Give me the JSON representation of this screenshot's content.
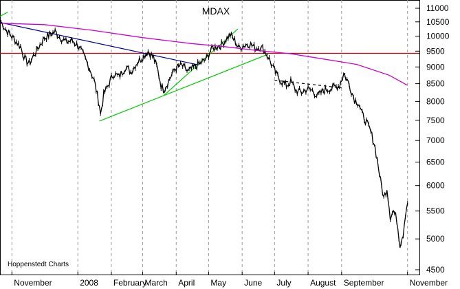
{
  "chart_data": {
    "type": "line",
    "title": "MDAX",
    "credit": "Hoppenstedt Charts",
    "xlabel": "",
    "ylabel": "",
    "x_start": "2007-11-01",
    "x_end": "2008-11-01",
    "x_range": [
      "2007-10-21",
      "2008-11-12"
    ],
    "ylim": [
      4500,
      11000
    ],
    "y_scale": "log",
    "yticks": [
      4500,
      5000,
      5500,
      6000,
      6500,
      7000,
      7500,
      8000,
      8500,
      9000,
      9500,
      10000,
      10500,
      11000
    ],
    "month_ticks": [
      {
        "label": "November",
        "date": "2007-11-01"
      },
      {
        "label": "2008",
        "date": "2008-01-01"
      },
      {
        "label": "February",
        "date": "2008-02-01"
      },
      {
        "label": "March",
        "date": "2008-03-01"
      },
      {
        "label": "April",
        "date": "2008-04-01"
      },
      {
        "label": "May",
        "date": "2008-05-01"
      },
      {
        "label": "June",
        "date": "2008-06-01"
      },
      {
        "label": "July",
        "date": "2008-07-01"
      },
      {
        "label": "August",
        "date": "2008-08-01"
      },
      {
        "label": "September",
        "date": "2008-09-01"
      },
      {
        "label": "November",
        "date": "2008-11-01"
      }
    ],
    "grid": {
      "vertical": true,
      "horizontal": false
    },
    "series": [
      {
        "name": "",
        "kind": "price",
        "color": "#000000",
        "points": [
          [
            "2007-10-22",
            10500
          ],
          [
            "2007-10-27",
            10200
          ],
          [
            "2007-11-03",
            9900
          ],
          [
            "2007-11-09",
            9650
          ],
          [
            "2007-11-13",
            9250
          ],
          [
            "2007-11-17",
            9100
          ],
          [
            "2007-11-21",
            9350
          ],
          [
            "2007-11-26",
            9650
          ],
          [
            "2007-12-01",
            9950
          ],
          [
            "2007-12-06",
            10050
          ],
          [
            "2007-12-11",
            10150
          ],
          [
            "2007-12-16",
            9950
          ],
          [
            "2007-12-21",
            9800
          ],
          [
            "2007-12-27",
            9850
          ],
          [
            "2008-01-02",
            9650
          ],
          [
            "2008-01-07",
            9300
          ],
          [
            "2008-01-12",
            8950
          ],
          [
            "2008-01-16",
            8600
          ],
          [
            "2008-01-21",
            7900
          ],
          [
            "2008-01-22",
            7650
          ],
          [
            "2008-01-25",
            8200
          ],
          [
            "2008-01-29",
            8450
          ],
          [
            "2008-02-03",
            8800
          ],
          [
            "2008-02-08",
            8700
          ],
          [
            "2008-02-14",
            9000
          ],
          [
            "2008-02-19",
            8850
          ],
          [
            "2008-02-25",
            9150
          ],
          [
            "2008-03-02",
            9350
          ],
          [
            "2008-03-06",
            9500
          ],
          [
            "2008-03-11",
            9300
          ],
          [
            "2008-03-15",
            8900
          ],
          [
            "2008-03-18",
            8450
          ],
          [
            "2008-03-21",
            8350
          ],
          [
            "2008-03-26",
            8650
          ],
          [
            "2008-03-31",
            8950
          ],
          [
            "2008-04-06",
            9050
          ],
          [
            "2008-04-12",
            8850
          ],
          [
            "2008-04-18",
            9000
          ],
          [
            "2008-04-23",
            9100
          ],
          [
            "2008-04-29",
            9250
          ],
          [
            "2008-05-03",
            9550
          ],
          [
            "2008-05-08",
            9650
          ],
          [
            "2008-05-13",
            9700
          ],
          [
            "2008-05-17",
            9900
          ],
          [
            "2008-05-21",
            10050
          ],
          [
            "2008-05-25",
            9850
          ],
          [
            "2008-05-29",
            9600
          ],
          [
            "2008-06-03",
            9700
          ],
          [
            "2008-06-08",
            9750
          ],
          [
            "2008-06-13",
            9600
          ],
          [
            "2008-06-18",
            9650
          ],
          [
            "2008-06-22",
            9500
          ],
          [
            "2008-06-26",
            9250
          ],
          [
            "2008-06-30",
            8950
          ],
          [
            "2008-07-04",
            8700
          ],
          [
            "2008-07-08",
            8550
          ],
          [
            "2008-07-12",
            8450
          ],
          [
            "2008-07-16",
            8550
          ],
          [
            "2008-07-21",
            8300
          ],
          [
            "2008-07-26",
            8250
          ],
          [
            "2008-07-31",
            8350
          ],
          [
            "2008-08-05",
            8300
          ],
          [
            "2008-08-10",
            8150
          ],
          [
            "2008-08-15",
            8300
          ],
          [
            "2008-08-20",
            8350
          ],
          [
            "2008-08-25",
            8400
          ],
          [
            "2008-08-30",
            8450
          ],
          [
            "2008-09-03",
            8800
          ],
          [
            "2008-09-07",
            8550
          ],
          [
            "2008-09-10",
            8300
          ],
          [
            "2008-09-13",
            8050
          ],
          [
            "2008-09-17",
            7950
          ],
          [
            "2008-09-20",
            7650
          ],
          [
            "2008-09-24",
            7450
          ],
          [
            "2008-09-28",
            7200
          ],
          [
            "2008-10-01",
            6950
          ],
          [
            "2008-10-04",
            6550
          ],
          [
            "2008-10-07",
            6100
          ],
          [
            "2008-10-10",
            5750
          ],
          [
            "2008-10-13",
            5950
          ],
          [
            "2008-10-16",
            5400
          ],
          [
            "2008-10-19",
            5500
          ],
          [
            "2008-10-22",
            5350
          ],
          [
            "2008-10-25",
            4900
          ],
          [
            "2008-10-28",
            5100
          ],
          [
            "2008-10-30",
            5450
          ],
          [
            "2008-11-01",
            5650
          ]
        ]
      },
      {
        "name": "",
        "kind": "moving-average",
        "color": "#cc00cc",
        "points": [
          [
            "2007-10-22",
            10450
          ],
          [
            "2007-12-01",
            10400
          ],
          [
            "2008-01-15",
            10200
          ],
          [
            "2008-03-01",
            9950
          ],
          [
            "2008-04-15",
            9750
          ],
          [
            "2008-05-15",
            9650
          ],
          [
            "2008-06-15",
            9520
          ],
          [
            "2008-07-15",
            9420
          ],
          [
            "2008-08-15",
            9250
          ],
          [
            "2008-09-15",
            9080
          ],
          [
            "2008-10-15",
            8750
          ],
          [
            "2008-11-01",
            8450
          ]
        ]
      }
    ],
    "reference_lines": [
      {
        "kind": "horizontal",
        "value": 9430,
        "color": "#cc0000"
      }
    ],
    "trendlines": [
      {
        "color": "#000099",
        "dash": false,
        "points": [
          [
            "2007-10-21",
            10480
          ],
          [
            "2008-04-22",
            9060
          ]
        ]
      },
      {
        "color": "#00cc00",
        "dash": false,
        "points": [
          [
            "2007-10-21",
            10700
          ],
          [
            "2007-10-28",
            10850
          ]
        ]
      },
      {
        "color": "#00cc00",
        "dash": false,
        "points": [
          [
            "2008-01-21",
            7480
          ],
          [
            "2008-06-25",
            9400
          ]
        ]
      },
      {
        "color": "#00cc00",
        "dash": false,
        "points": [
          [
            "2008-03-20",
            8150
          ],
          [
            "2008-05-28",
            10250
          ]
        ]
      },
      {
        "color": "#000000",
        "dash": true,
        "points": [
          [
            "2008-07-01",
            8600
          ],
          [
            "2008-09-01",
            8380
          ]
        ]
      }
    ]
  }
}
